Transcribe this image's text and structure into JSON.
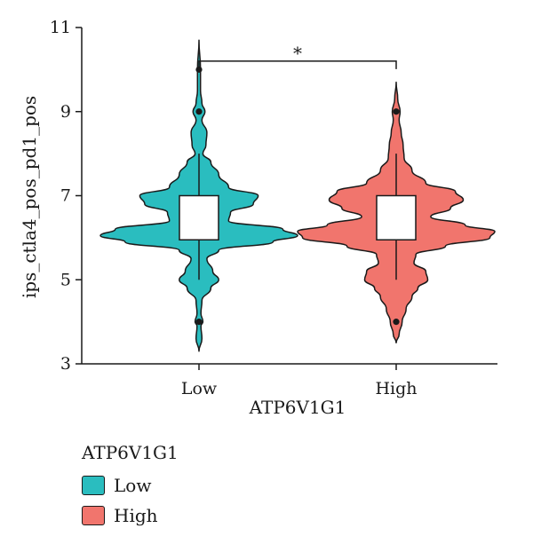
{
  "chart_data": {
    "type": "violin",
    "xlabel": "ATP6V1G1",
    "ylabel": "ips_ctla4_pos_pd1_pos",
    "ylim": [
      3,
      11
    ],
    "yticks": [
      3,
      5,
      7,
      9,
      11
    ],
    "categories": [
      "Low",
      "High"
    ],
    "colors": {
      "Low": "#2ABDBF",
      "High": "#F1756D"
    },
    "series": [
      {
        "name": "Low",
        "box": {
          "min": 5,
          "q1": 5.95,
          "median": 6.5,
          "q3": 7,
          "max": 8
        },
        "range": [
          3.3,
          10.7
        ],
        "outliers": [
          4,
          9,
          10
        ],
        "density": [
          [
            3.3,
            0.0
          ],
          [
            3.6,
            0.03
          ],
          [
            3.9,
            0.02
          ],
          [
            4.0,
            0.04
          ],
          [
            4.2,
            0.02
          ],
          [
            4.5,
            0.03
          ],
          [
            4.8,
            0.12
          ],
          [
            5.0,
            0.2
          ],
          [
            5.2,
            0.14
          ],
          [
            5.5,
            0.08
          ],
          [
            5.7,
            0.2
          ],
          [
            5.9,
            0.75
          ],
          [
            6.05,
            1.0
          ],
          [
            6.2,
            0.85
          ],
          [
            6.4,
            0.3
          ],
          [
            6.6,
            0.32
          ],
          [
            6.8,
            0.55
          ],
          [
            7.0,
            0.6
          ],
          [
            7.2,
            0.3
          ],
          [
            7.5,
            0.2
          ],
          [
            7.8,
            0.12
          ],
          [
            8.0,
            0.04
          ],
          [
            8.2,
            0.07
          ],
          [
            8.5,
            0.08
          ],
          [
            8.8,
            0.03
          ],
          [
            9.0,
            0.06
          ],
          [
            9.2,
            0.03
          ],
          [
            9.5,
            0.015
          ],
          [
            10.0,
            0.015
          ],
          [
            10.7,
            0.0
          ]
        ]
      },
      {
        "name": "High",
        "box": {
          "min": 5,
          "q1": 5.95,
          "median": 6.5,
          "q3": 7,
          "max": 8
        },
        "range": [
          3.5,
          9.7
        ],
        "outliers": [
          4,
          9
        ],
        "density": [
          [
            3.5,
            0.0
          ],
          [
            3.7,
            0.03
          ],
          [
            4.0,
            0.06
          ],
          [
            4.3,
            0.1
          ],
          [
            4.6,
            0.16
          ],
          [
            4.8,
            0.22
          ],
          [
            5.0,
            0.32
          ],
          [
            5.2,
            0.3
          ],
          [
            5.4,
            0.18
          ],
          [
            5.6,
            0.2
          ],
          [
            5.8,
            0.5
          ],
          [
            6.0,
            0.95
          ],
          [
            6.15,
            1.0
          ],
          [
            6.3,
            0.7
          ],
          [
            6.5,
            0.35
          ],
          [
            6.7,
            0.55
          ],
          [
            6.9,
            0.68
          ],
          [
            7.1,
            0.6
          ],
          [
            7.3,
            0.3
          ],
          [
            7.6,
            0.16
          ],
          [
            7.9,
            0.08
          ],
          [
            8.2,
            0.07
          ],
          [
            8.5,
            0.05
          ],
          [
            8.8,
            0.03
          ],
          [
            9.0,
            0.04
          ],
          [
            9.3,
            0.015
          ],
          [
            9.7,
            0.0
          ]
        ]
      }
    ],
    "significance": {
      "label": "*",
      "y": 10.2,
      "between": [
        "Low",
        "High"
      ]
    }
  },
  "legend": {
    "title": "ATP6V1G1",
    "items": [
      {
        "label": "Low",
        "color": "#2ABDBF"
      },
      {
        "label": "High",
        "color": "#F1756D"
      }
    ]
  }
}
